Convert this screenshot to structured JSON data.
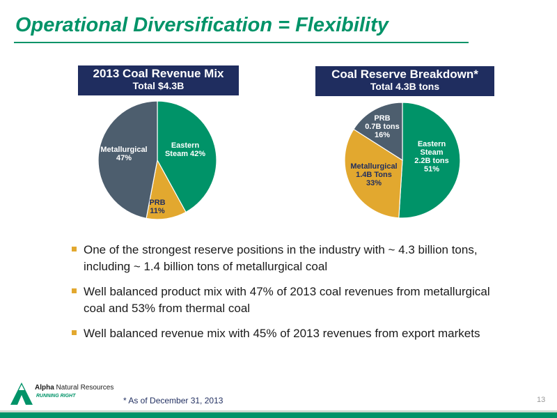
{
  "slide": {
    "title": "Operational Diversification = Flexibility",
    "footnote": "* As of December 31, 2013",
    "page_number": "13"
  },
  "logo": {
    "name_bold": "Alpha",
    "name_rest": " Natural Resources",
    "tagline": "RUNNING RIGHT"
  },
  "colors": {
    "title_green": "#009368",
    "header_navy": "#1f2d5f",
    "eastern_green": "#009368",
    "prb_gold": "#e2a82f",
    "met_slate": "#4d5e6e",
    "bullet_gold": "#e2a82f"
  },
  "bullets": [
    "One of the strongest reserve positions in the industry with ~ 4.3 billion tons, including ~ 1.4 billion tons of metallurgical coal",
    "Well balanced product mix with 47% of 2013 coal revenues from metallurgical coal and 53% from thermal coal",
    "Well balanced revenue mix with 45% of 2013 revenues from export markets"
  ],
  "chart_data": [
    {
      "type": "pie",
      "title": "2013 Coal Revenue Mix",
      "subtitle": "Total $4.3B",
      "slices": [
        {
          "label_lines": [
            "Eastern",
            "Steam 42%"
          ],
          "value": 42,
          "color": "#009368"
        },
        {
          "label_lines": [
            "PRB",
            "11%"
          ],
          "value": 11,
          "color": "#e2a82f"
        },
        {
          "label_lines": [
            "Metallurgical",
            "47%"
          ],
          "value": 47,
          "color": "#4d5e6e"
        }
      ]
    },
    {
      "type": "pie",
      "title": "Coal Reserve Breakdown*",
      "subtitle": "Total 4.3B tons",
      "slices": [
        {
          "label_lines": [
            "Eastern",
            "Steam",
            "2.2B tons",
            "51%"
          ],
          "value": 51,
          "color": "#009368"
        },
        {
          "label_lines": [
            "Metallurgical",
            "1.4B Tons",
            "33%"
          ],
          "value": 33,
          "color": "#e2a82f"
        },
        {
          "label_lines": [
            "PRB",
            "0.7B tons",
            "16%"
          ],
          "value": 16,
          "color": "#4d5e6e"
        }
      ]
    }
  ]
}
